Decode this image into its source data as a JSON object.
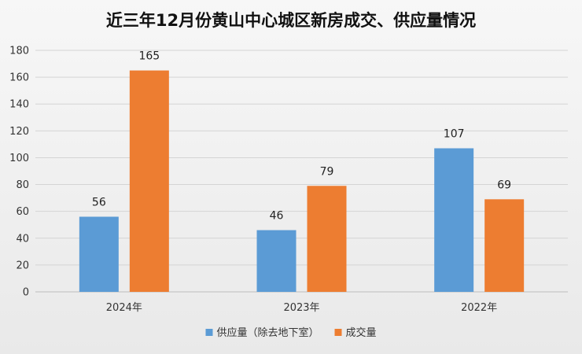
{
  "chart_data": {
    "type": "bar",
    "title": "近三年12月份黄山中心城区新房成交、供应量情况",
    "categories": [
      "2024年",
      "2023年",
      "2022年"
    ],
    "series": [
      {
        "name": "供应量（除去地下室）",
        "values": [
          56,
          46,
          107
        ],
        "color": "#5b9bd5"
      },
      {
        "name": "成交量",
        "values": [
          165,
          79,
          69
        ],
        "color": "#ed7d31"
      }
    ],
    "ylim": [
      0,
      180
    ],
    "yticks": [
      0,
      20,
      40,
      60,
      80,
      100,
      120,
      140,
      160,
      180
    ],
    "grid": true,
    "legend_position": "bottom"
  }
}
